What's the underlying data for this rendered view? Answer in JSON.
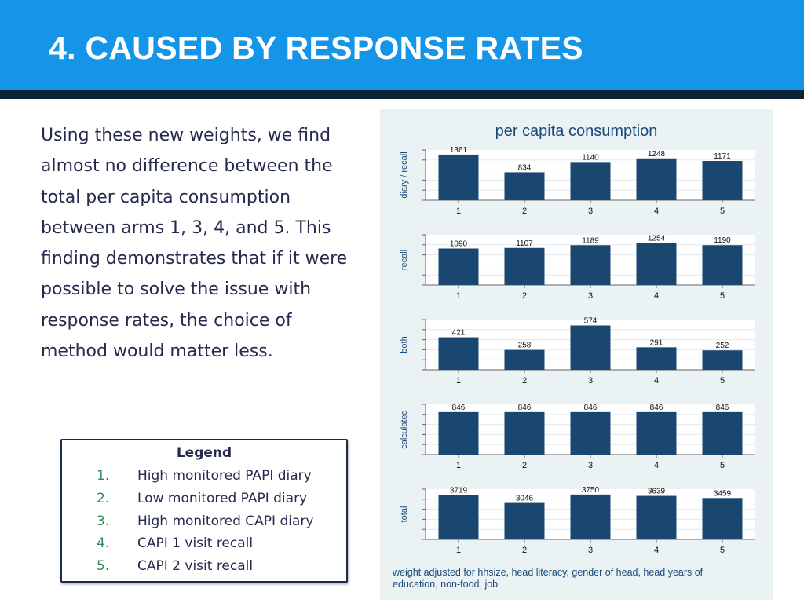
{
  "slide": {
    "title": "4. CAUSED BY RESPONSE RATES",
    "body": "Using these new weights, we find almost no difference between the total per capita consumption between arms 1, 3, 4, and 5.  This finding demonstrates that if it were possible to solve the issue with response rates, the choice of method would matter less.",
    "header_color": "#1495e8",
    "header_rule_color": "#0c2335"
  },
  "legend": {
    "title": "Legend",
    "items": [
      {
        "num": "1.",
        "label": "High monitored PAPI diary"
      },
      {
        "num": "2.",
        "label": "Low monitored PAPI diary"
      },
      {
        "num": "3.",
        "label": "High monitored CAPI diary"
      },
      {
        "num": "4.",
        "label": "CAPI 1 visit recall"
      },
      {
        "num": "5.",
        "label": "CAPI 2 visit recall"
      }
    ]
  },
  "chart_data": {
    "type": "bar",
    "title": "per capita consumption",
    "note": "weight adjusted for hhsize, head literacy, gender of head, head years of education, non-food, job",
    "categories": [
      "1",
      "2",
      "3",
      "4",
      "5"
    ],
    "bar_color": "#1a476f",
    "grid": true,
    "panels": [
      {
        "ylabel": "diary / recall",
        "values": [
          1361,
          834,
          1140,
          1248,
          1171
        ],
        "ylim": [
          0,
          1500
        ]
      },
      {
        "ylabel": "recall",
        "values": [
          1090,
          1107,
          1189,
          1254,
          1190
        ],
        "ylim": [
          0,
          1500
        ]
      },
      {
        "ylabel": "both",
        "values": [
          421,
          258,
          574,
          291,
          252
        ],
        "ylim": [
          0,
          650
        ]
      },
      {
        "ylabel": "calculated",
        "values": [
          846,
          846,
          846,
          846,
          846
        ],
        "ylim": [
          0,
          1000
        ]
      },
      {
        "ylabel": "total",
        "values": [
          3719,
          3046,
          3750,
          3639,
          3459
        ],
        "ylim": [
          0,
          4200
        ]
      }
    ]
  }
}
